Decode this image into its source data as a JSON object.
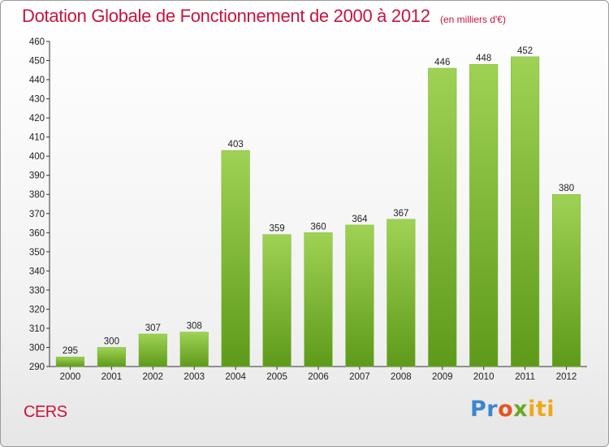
{
  "chart_data": {
    "type": "bar",
    "title": "Dotation Globale de Fonctionnement de 2000 à 2012",
    "subtitle": "(en milliers d'€)",
    "xlabel": "",
    "ylabel": "",
    "categories": [
      "2000",
      "2001",
      "2002",
      "2003",
      "2004",
      "2005",
      "2006",
      "2007",
      "2008",
      "2009",
      "2010",
      "2011",
      "2012"
    ],
    "values": [
      295,
      300,
      307,
      308,
      403,
      359,
      360,
      364,
      367,
      446,
      448,
      452,
      380
    ],
    "ylim": [
      290,
      460
    ],
    "ytick_step": 10,
    "grid": false,
    "bar_color": "#8cc63f",
    "bar_color_dark": "#5e9a1a"
  },
  "footer": {
    "commune": "CERS",
    "logo": {
      "p1": "Pr",
      "p2": "o",
      "p3": "x",
      "p4": "iti"
    }
  }
}
